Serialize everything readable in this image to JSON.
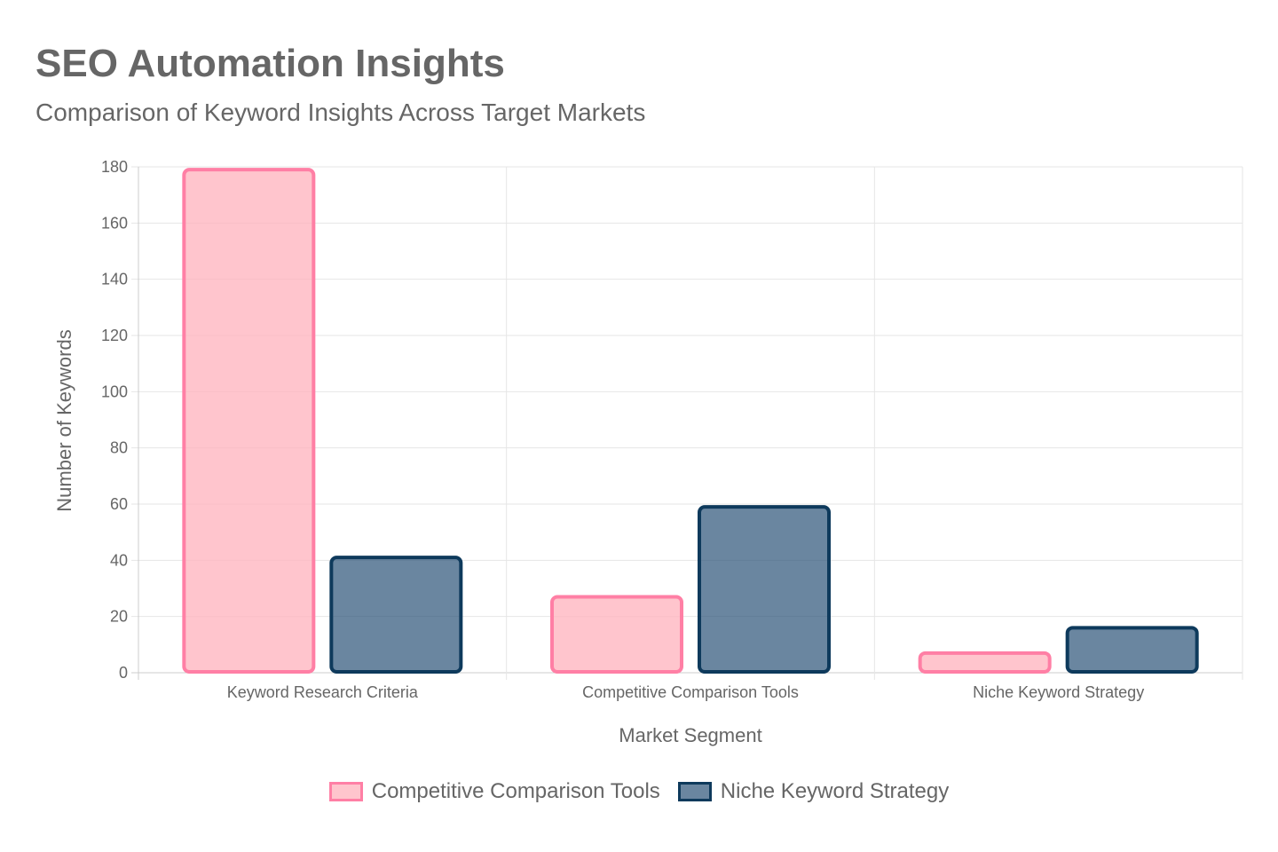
{
  "header": {
    "title": "SEO Automation Insights",
    "subtitle": "Comparison of Keyword Insights Across Target Markets"
  },
  "chart_data": {
    "type": "bar",
    "categories": [
      "Keyword Research Criteria",
      "Competitive Comparison Tools",
      "Niche Keyword Strategy"
    ],
    "series": [
      {
        "name": "Competitive Comparison Tools",
        "values": [
          179,
          27,
          7
        ],
        "fill": "#ffb6c1cc",
        "border": "#ff7fa5"
      },
      {
        "name": "Niche Keyword Strategy",
        "values": [
          41,
          59,
          16
        ],
        "fill": "#1f4a70aa",
        "border": "#0e3a5c"
      }
    ],
    "xlabel": "Market Segment",
    "ylabel": "Number of Keywords",
    "ylim": [
      0,
      180
    ],
    "yticks": [
      0,
      20,
      40,
      60,
      80,
      100,
      120,
      140,
      160,
      180
    ],
    "grid": true,
    "legend": "bottom"
  }
}
